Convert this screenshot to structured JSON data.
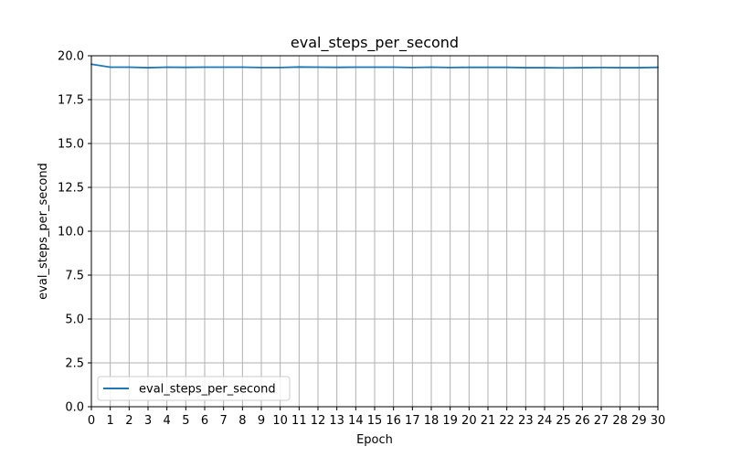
{
  "chart_data": {
    "type": "line",
    "title": "eval_steps_per_second",
    "xlabel": "Epoch",
    "ylabel": "eval_steps_per_second",
    "xlim": [
      0,
      30
    ],
    "ylim": [
      0,
      20
    ],
    "x_ticks": [
      0,
      1,
      2,
      3,
      4,
      5,
      6,
      7,
      8,
      9,
      10,
      11,
      12,
      13,
      14,
      15,
      16,
      17,
      18,
      19,
      20,
      21,
      22,
      23,
      24,
      25,
      26,
      27,
      28,
      29,
      30
    ],
    "y_ticks": [
      0.0,
      2.5,
      5.0,
      7.5,
      10.0,
      12.5,
      15.0,
      17.5,
      20.0
    ],
    "y_tick_labels": [
      "0.0",
      "2.5",
      "5.0",
      "7.5",
      "10.0",
      "12.5",
      "15.0",
      "17.5",
      "20.0"
    ],
    "grid": true,
    "legend_position": "lower-left",
    "series": [
      {
        "name": "eval_steps_per_second",
        "color": "#1f77b4",
        "x": [
          0,
          1,
          2,
          3,
          4,
          5,
          6,
          7,
          8,
          9,
          10,
          11,
          12,
          13,
          14,
          15,
          16,
          17,
          18,
          19,
          20,
          21,
          22,
          23,
          24,
          25,
          26,
          27,
          28,
          29,
          30
        ],
        "values": [
          19.52,
          19.35,
          19.35,
          19.32,
          19.35,
          19.34,
          19.35,
          19.35,
          19.35,
          19.33,
          19.33,
          19.36,
          19.35,
          19.34,
          19.35,
          19.35,
          19.35,
          19.33,
          19.35,
          19.33,
          19.34,
          19.34,
          19.34,
          19.32,
          19.32,
          19.31,
          19.32,
          19.33,
          19.32,
          19.32,
          19.34
        ]
      }
    ]
  }
}
